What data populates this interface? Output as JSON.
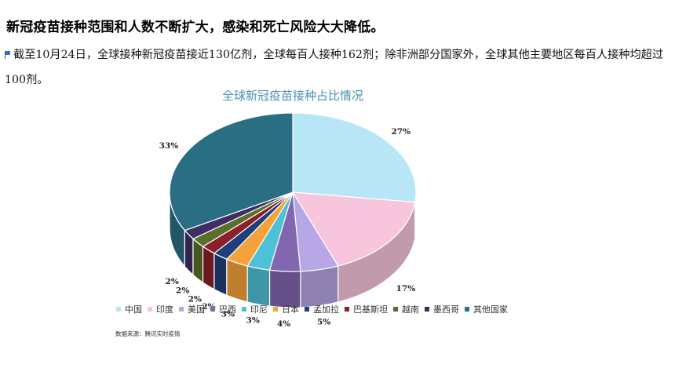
{
  "article": {
    "headline": "新冠疫苗接种范围和人数不断扩大，感染和死亡风险大大降低。",
    "paragraph": "截至10月24日，全球接种新冠疫苗接近130亿剂，全球每百人接种162剂；除非洲部分国家外，全球其他主要地区每百人接种均超过100剂。",
    "flag_icon": "flag-icon"
  },
  "chart_data": {
    "type": "pie",
    "title": "全球新冠疫苗接种占比情况",
    "categories": [
      "中国",
      "印度",
      "美国",
      "巴西",
      "印尼",
      "日本",
      "孟加拉",
      "巴基斯坦",
      "越南",
      "墨西哥",
      "其他国家"
    ],
    "values": [
      27,
      17,
      5,
      4,
      3,
      3,
      2,
      2,
      2,
      2,
      33
    ],
    "labels": [
      "27%",
      "17%",
      "5%",
      "4%",
      "3%",
      "3%",
      "2%",
      "2%",
      "2%",
      "2%",
      "33%"
    ],
    "colors": [
      "#b9e6f7",
      "#f7c6dd",
      "#b7a7e6",
      "#8166b0",
      "#4ec1d6",
      "#f5a23a",
      "#1f3f7a",
      "#8b1f2c",
      "#5a6f2c",
      "#3e2e64",
      "#2a6e84"
    ],
    "legend_position": "bottom",
    "style": "3d-pie"
  },
  "source": "数据来源：腾讯实时疫情"
}
